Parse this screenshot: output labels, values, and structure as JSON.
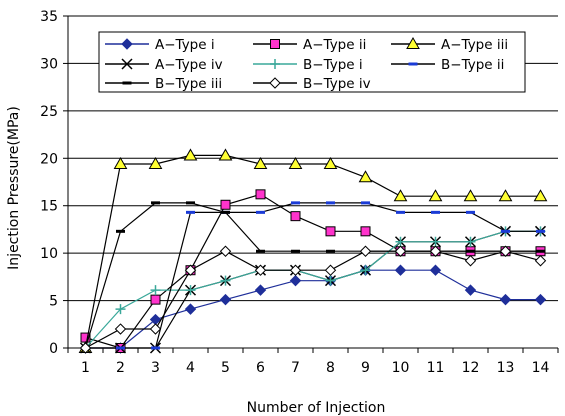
{
  "chart_data": {
    "type": "line",
    "title": "",
    "xlabel": "Number of Injection",
    "ylabel": "Injection Pressure(MPa)",
    "x": [
      1,
      2,
      3,
      4,
      5,
      6,
      7,
      8,
      9,
      10,
      11,
      12,
      13,
      14
    ],
    "ylim": [
      0,
      35
    ],
    "yticks": [
      0,
      5,
      10,
      15,
      20,
      25,
      30,
      35
    ],
    "grid": "horizontal",
    "legend": "top-inside",
    "series": [
      {
        "name": "A−Type i",
        "color": "#1f2f9a",
        "marker": "diamond-filled",
        "values": [
          0,
          0,
          3,
          4.1,
          5.1,
          6.1,
          7.1,
          7.1,
          8.2,
          8.2,
          8.2,
          6.1,
          5.1,
          5.1
        ]
      },
      {
        "name": "A−Type ii",
        "color": "#000000",
        "marker": "square-magenta",
        "values": [
          1.1,
          0,
          5.1,
          8.2,
          15.1,
          16.2,
          13.9,
          12.3,
          12.3,
          10.2,
          10.2,
          10.2,
          10.2,
          10.2
        ]
      },
      {
        "name": "A−Type iii",
        "color": "#000000",
        "marker": "triangle-yellow",
        "values": [
          0,
          19.4,
          19.4,
          20.3,
          20.3,
          19.4,
          19.4,
          19.4,
          18,
          16,
          16,
          16,
          16,
          16
        ]
      },
      {
        "name": "A−Type iv",
        "color": "#000000",
        "marker": "x",
        "values": [
          0,
          0,
          0,
          6.1,
          7.1,
          8.2,
          8.2,
          7.1,
          8.2,
          11.2,
          11.2,
          11.2,
          12.3,
          12.3
        ]
      },
      {
        "name": "B−Type i",
        "color": "#3aa89a",
        "marker": "plus",
        "values": [
          0,
          4.1,
          6.1,
          6.1,
          7.1,
          8.2,
          8.2,
          7.1,
          8.2,
          11.2,
          11.2,
          11.2,
          12.3,
          12.3
        ]
      },
      {
        "name": "B−Type ii",
        "color": "#000000",
        "marker": "dash-blue",
        "values": [
          0,
          0,
          0,
          14.3,
          14.3,
          14.3,
          15.3,
          15.3,
          15.3,
          14.3,
          14.3,
          14.3,
          12.3,
          12.3
        ]
      },
      {
        "name": "B−Type iii",
        "color": "#000000",
        "marker": "dash-black",
        "values": [
          0,
          12.3,
          15.3,
          15.3,
          14.3,
          10.2,
          10.2,
          10.2,
          10.2,
          10.2,
          10.2,
          10.2,
          10.2,
          10.2
        ]
      },
      {
        "name": "B−Type iv",
        "color": "#000000",
        "marker": "diamond-open",
        "values": [
          0,
          2,
          2,
          8.2,
          10.2,
          8.2,
          8.2,
          8.2,
          10.2,
          10.2,
          10.2,
          9.2,
          10.2,
          9.2
        ]
      }
    ]
  }
}
